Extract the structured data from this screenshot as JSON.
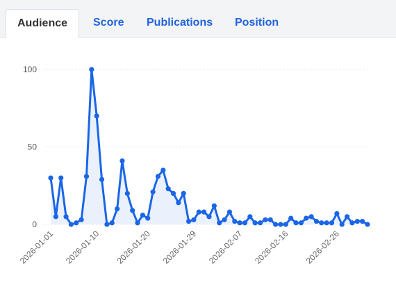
{
  "tabs": [
    {
      "label": "Audience",
      "active": true
    },
    {
      "label": "Score",
      "active": false
    },
    {
      "label": "Publications",
      "active": false
    },
    {
      "label": "Position",
      "active": false
    }
  ],
  "colors": {
    "line": "#1a66e6",
    "area": "#eaf1fd",
    "tab_active_text": "#333333",
    "tab_text": "#1f63e0"
  },
  "chart_data": {
    "type": "line",
    "title": "",
    "xlabel": "",
    "ylabel": "",
    "ylim": [
      0,
      100
    ],
    "yticks": [
      0,
      50,
      100
    ],
    "xticks": [
      "2026-01-01",
      "2026-01-10",
      "2026-01-20",
      "2026-01-29",
      "2026-02-07",
      "2026-02-16",
      "2026-02-26"
    ],
    "start": "2026-01-01",
    "end": "2026-03-06",
    "values": [
      30,
      5,
      30,
      5,
      0,
      1,
      3,
      31,
      100,
      70,
      29,
      0,
      1,
      10,
      41,
      20,
      9,
      1,
      6,
      4,
      21,
      31,
      35,
      23,
      20,
      14,
      20,
      2,
      3,
      8,
      8,
      5,
      12,
      1,
      3,
      8,
      2,
      1,
      1,
      5,
      1,
      1,
      3,
      3,
      0,
      0,
      0,
      4,
      1,
      1,
      4,
      5,
      2,
      1,
      1,
      1,
      7,
      0,
      5,
      1,
      2,
      2,
      0
    ]
  }
}
